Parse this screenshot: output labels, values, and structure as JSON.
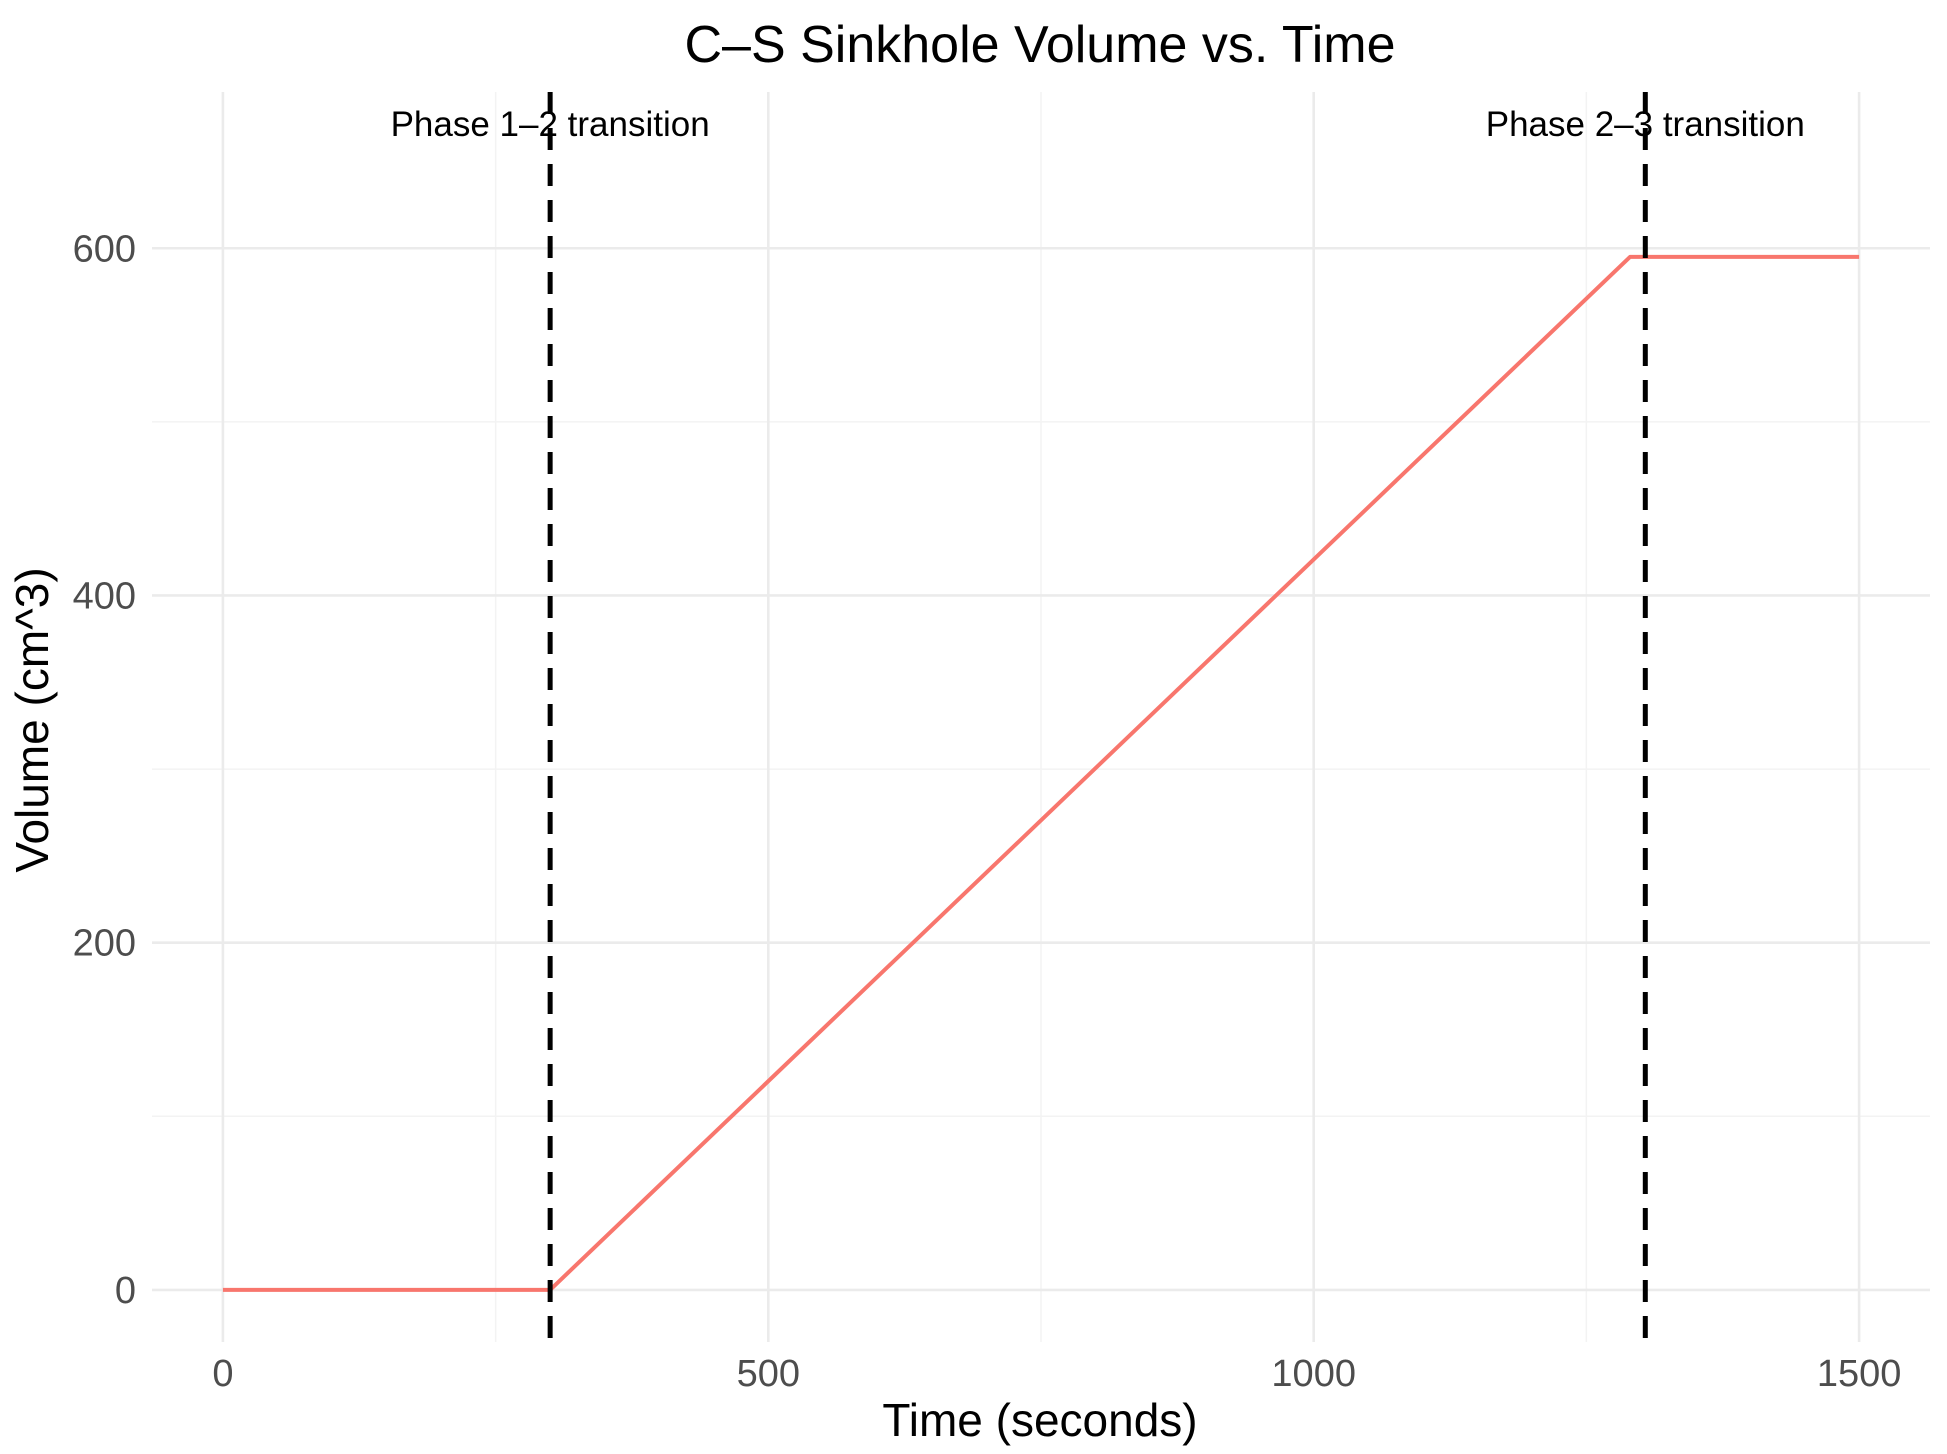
{
  "chart_data": {
    "type": "line",
    "title": "C–S Sinkhole Volume vs. Time",
    "xlabel": "Time (seconds)",
    "ylabel": "Volume (cm^3)",
    "xlim": [
      -65,
      1565
    ],
    "ylim": [
      -30,
      690
    ],
    "x_ticks": [
      0,
      500,
      1000,
      1500
    ],
    "y_ticks": [
      0,
      200,
      400,
      600
    ],
    "x_minor_ticks": [
      250,
      750,
      1250
    ],
    "y_minor_ticks": [
      100,
      300,
      500
    ],
    "grid": true,
    "series": [
      {
        "color": "#F8766D",
        "points": [
          [
            0,
            0
          ],
          [
            300,
            0
          ],
          [
            1290,
            595
          ],
          [
            1500,
            595
          ]
        ]
      }
    ],
    "vlines": [
      {
        "x": 300,
        "label": "Phase 1–2 transition",
        "color": "#000000",
        "style": "dashed"
      },
      {
        "x": 1304,
        "label": "Phase 2–3 transition",
        "color": "#000000",
        "style": "dashed"
      }
    ]
  }
}
